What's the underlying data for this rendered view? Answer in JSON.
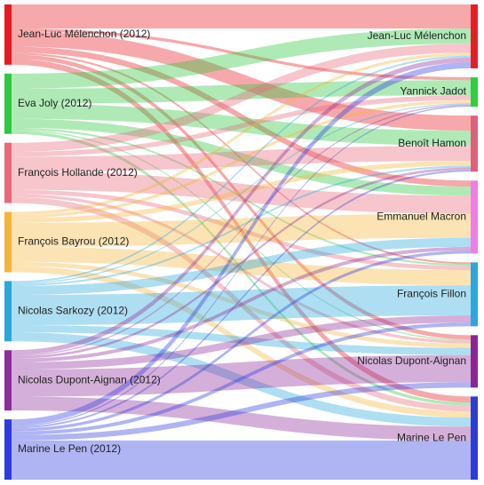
{
  "chart_data": {
    "type": "sankey",
    "sources": [
      {
        "name": "Jean-Luc Mélenchon (2012)",
        "color": "#e8191f",
        "flows": [
          40,
          5,
          25,
          10,
          3,
          7,
          10
        ]
      },
      {
        "name": "Eva Joly (2012)",
        "color": "#2ec940",
        "flows": [
          25,
          25,
          25,
          15,
          3,
          2,
          5
        ]
      },
      {
        "name": "François Hollande (2012)",
        "color": "#e8697a",
        "flows": [
          15,
          8,
          25,
          30,
          7,
          5,
          10
        ]
      },
      {
        "name": "François Bayrou (2012)",
        "color": "#f5b53a",
        "flows": [
          5,
          5,
          8,
          40,
          25,
          7,
          10
        ]
      },
      {
        "name": "Nicolas Sarkozy (2012)",
        "color": "#2aa7dd",
        "flows": [
          3,
          2,
          3,
          15,
          50,
          12,
          15
        ]
      },
      {
        "name": "Nicolas Dupont-Aignan (2012)",
        "color": "#8e2c9a",
        "flows": [
          8,
          2,
          4,
          6,
          12,
          45,
          23
        ]
      },
      {
        "name": "Marine Le Pen (2012)",
        "color": "#2d3adf",
        "flows": [
          10,
          2,
          3,
          5,
          6,
          9,
          65
        ]
      }
    ],
    "targets": [
      {
        "name": "Jean-Luc Mélenchon",
        "color": "#e81e25"
      },
      {
        "name": "Yannick Jadot",
        "color": "#2fcf3e"
      },
      {
        "name": "Benoît Hamon",
        "color": "#e0607a"
      },
      {
        "name": "Emmanuel Macron",
        "color": "#f07de8"
      },
      {
        "name": "François Fillon",
        "color": "#2aa7dd"
      },
      {
        "name": "Nicolas Dupont-Aignan",
        "color": "#8b2597"
      },
      {
        "name": "Marine Le Pen",
        "color": "#2c3cd8"
      }
    ]
  }
}
